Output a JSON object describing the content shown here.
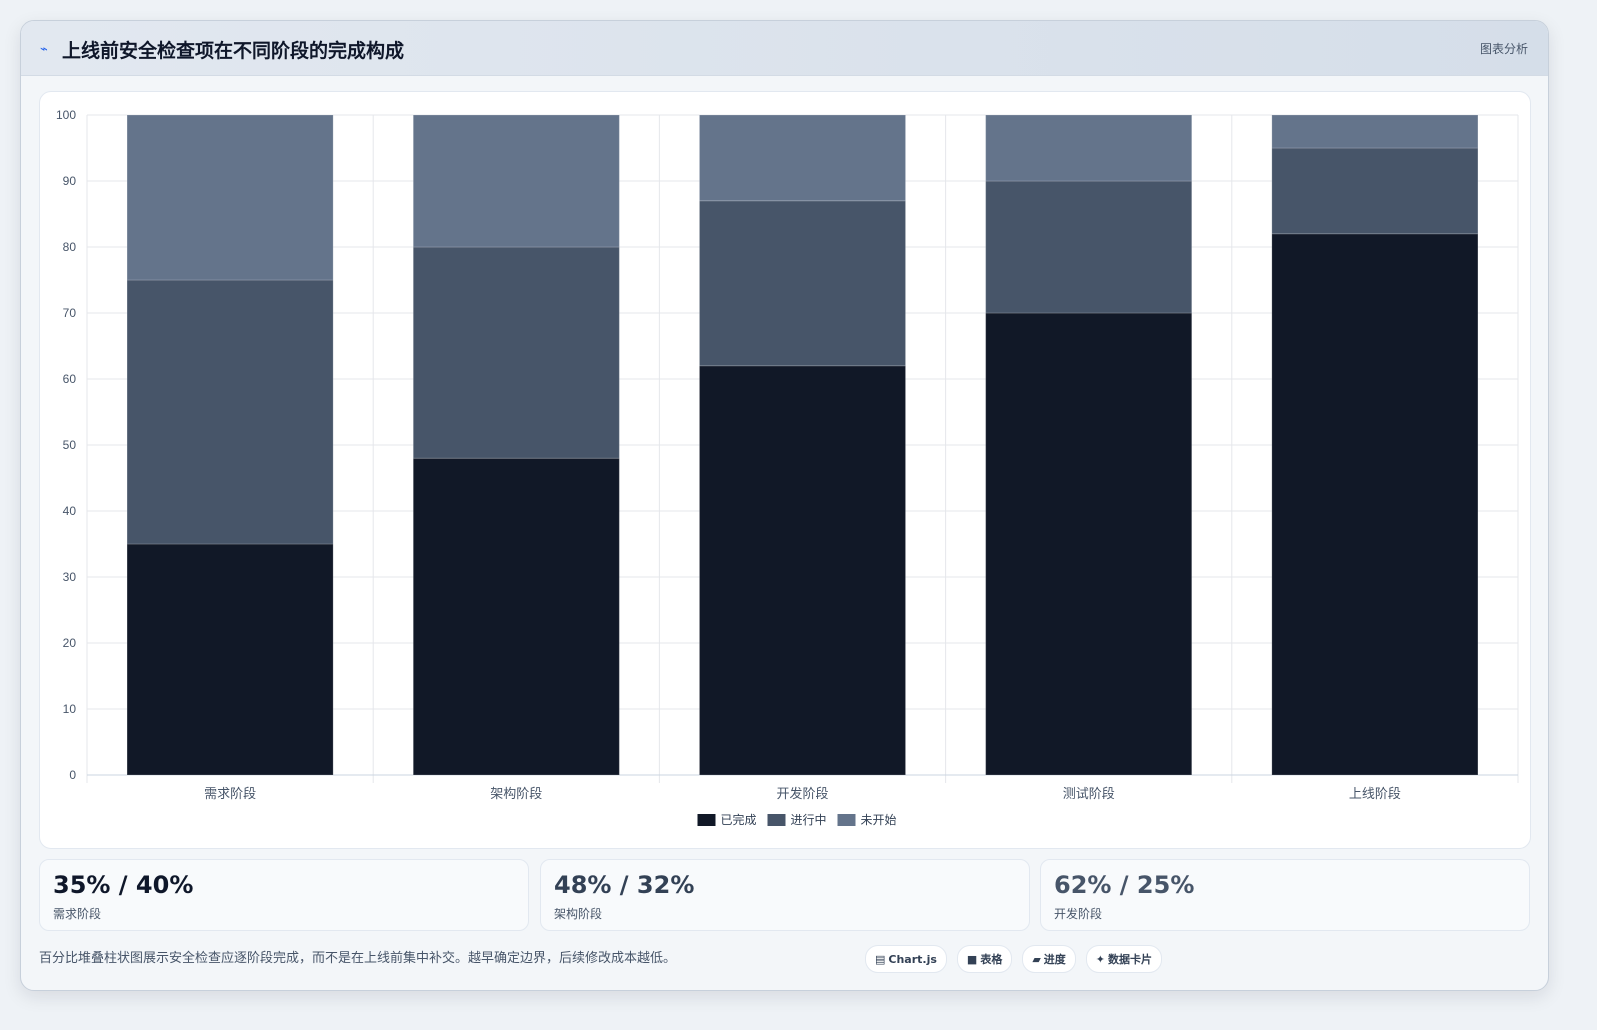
{
  "header": {
    "icon": "trend-line-icon",
    "title": "上线前安全检查项在不同阶段的完成构成",
    "action_label": "图表分析"
  },
  "chart_data": {
    "type": "bar",
    "stacked": true,
    "categories": [
      "需求阶段",
      "架构阶段",
      "开发阶段",
      "测试阶段",
      "上线阶段"
    ],
    "series": [
      {
        "name": "已完成",
        "color": "#111827",
        "values": [
          35,
          48,
          62,
          70,
          82
        ]
      },
      {
        "name": "进行中",
        "color": "#475569",
        "values": [
          40,
          32,
          25,
          20,
          13
        ]
      },
      {
        "name": "未开始",
        "color": "#64748b",
        "values": [
          25,
          20,
          13,
          10,
          5
        ]
      }
    ],
    "ylim": [
      0,
      100
    ],
    "yticks": [
      0,
      10,
      20,
      30,
      40,
      50,
      60,
      70,
      80,
      90,
      100
    ],
    "grid": true,
    "legend_position": "bottom"
  },
  "stats": [
    {
      "value": "35% / 40%",
      "label": "需求阶段",
      "color": "#0f172a"
    },
    {
      "value": "48% / 32%",
      "label": "架构阶段",
      "color": "#334155"
    },
    {
      "value": "62% / 25%",
      "label": "开发阶段",
      "color": "#475569"
    }
  ],
  "footer": {
    "note": "百分比堆叠柱状图展示安全检查应逐阶段完成，而不是在上线前集中补交。越早确定边界，后续修改成本越低。",
    "pills": [
      {
        "icon": "chart-icon",
        "glyph": "▤",
        "label": "Chart.js"
      },
      {
        "icon": "table-icon",
        "glyph": "■",
        "label": "表格"
      },
      {
        "icon": "progress-icon",
        "glyph": "▰",
        "label": "进度"
      },
      {
        "icon": "sparkle-icon",
        "glyph": "✦",
        "label": "数据卡片"
      }
    ]
  }
}
